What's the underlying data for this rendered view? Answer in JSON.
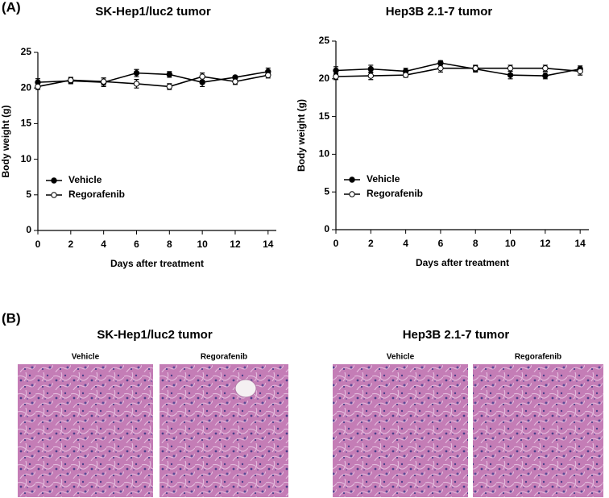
{
  "panel_a": {
    "label": "(A)"
  },
  "chart_data": [
    {
      "type": "line",
      "title": "SK-Hep1/luc2 tumor",
      "xlabel": "Days after treatment",
      "ylabel": "Body weight (g)",
      "x": [
        0,
        2,
        4,
        6,
        8,
        10,
        12,
        14
      ],
      "xlim": [
        0,
        14.5
      ],
      "xticks": [
        0,
        2,
        4,
        6,
        8,
        10,
        12,
        14
      ],
      "ylim": [
        0,
        25
      ],
      "yticks": [
        0,
        5,
        10,
        15,
        20,
        25
      ],
      "legend": "lower left",
      "series": [
        {
          "name": "Vehicle",
          "color": "#000000",
          "marker_fill": "#000000",
          "values": [
            20.8,
            21.0,
            20.8,
            22.1,
            21.9,
            20.8,
            21.5,
            22.3
          ],
          "errors": [
            0.5,
            0.4,
            0.6,
            0.5,
            0.4,
            0.6,
            0.2,
            0.5
          ]
        },
        {
          "name": "Regorafenib",
          "color": "#000000",
          "marker_fill": "#ffffff",
          "values": [
            20.2,
            21.1,
            20.9,
            20.6,
            20.2,
            21.6,
            20.9,
            21.8
          ],
          "errors": [
            0.4,
            0.4,
            0.5,
            0.6,
            0.4,
            0.5,
            0.4,
            0.4
          ]
        }
      ]
    },
    {
      "type": "line",
      "title": "Hep3B 2.1-7 tumor",
      "xlabel": "Days after treatment",
      "ylabel": "Body weight (g)",
      "x": [
        0,
        2,
        4,
        6,
        8,
        10,
        12,
        14
      ],
      "xlim": [
        0,
        14.5
      ],
      "xticks": [
        0,
        2,
        4,
        6,
        8,
        10,
        12,
        14
      ],
      "ylim": [
        0,
        25
      ],
      "yticks": [
        0,
        5,
        10,
        15,
        20,
        25
      ],
      "legend": "lower left",
      "series": [
        {
          "name": "Vehicle",
          "color": "#000000",
          "marker_fill": "#000000",
          "values": [
            21.1,
            21.3,
            21.0,
            22.1,
            21.3,
            20.5,
            20.4,
            21.3
          ],
          "errors": [
            0.5,
            0.5,
            0.4,
            0.3,
            0.4,
            0.5,
            0.4,
            0.4
          ]
        },
        {
          "name": "Regorafenib",
          "color": "#000000",
          "marker_fill": "#ffffff",
          "values": [
            20.3,
            20.4,
            20.5,
            21.4,
            21.4,
            21.4,
            21.4,
            21.0
          ],
          "errors": [
            0.4,
            0.5,
            0.3,
            0.5,
            0.4,
            0.4,
            0.4,
            0.5
          ]
        }
      ]
    }
  ],
  "panel_b": {
    "label": "(B)",
    "groups": [
      {
        "title": "SK-Hep1/luc2 tumor",
        "images": [
          "Vehicle",
          "Regorafenib"
        ]
      },
      {
        "title": "Hep3B 2.1-7 tumor",
        "images": [
          "Vehicle",
          "Regorafenib"
        ]
      }
    ]
  }
}
